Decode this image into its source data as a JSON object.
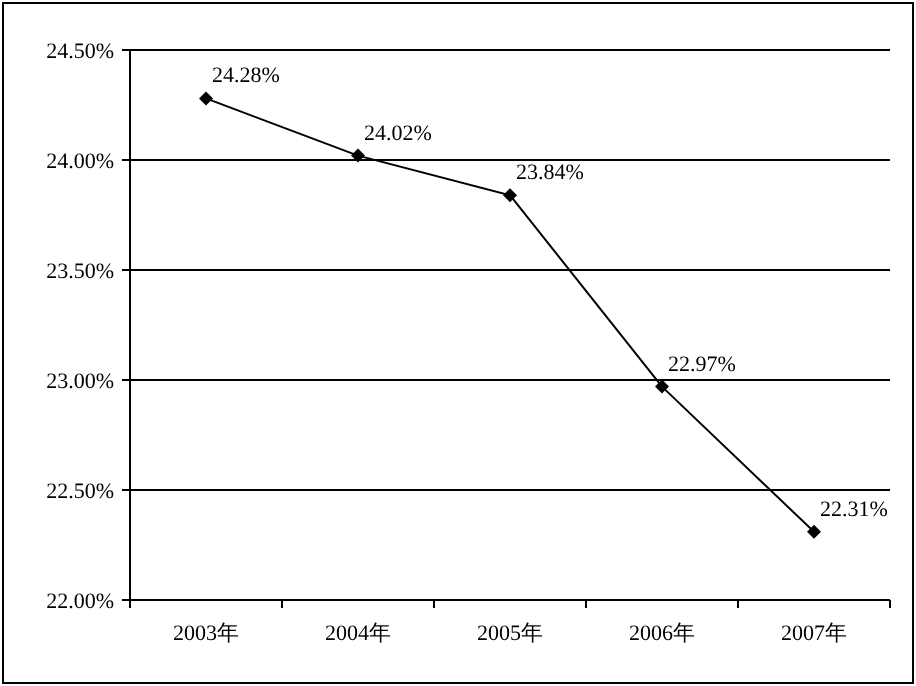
{
  "chart_data": {
    "type": "line",
    "categories": [
      "2003年",
      "2004年",
      "2005年",
      "2006年",
      "2007年"
    ],
    "series": [
      {
        "color": "#000000",
        "values": [
          24.28,
          24.02,
          23.84,
          22.97,
          22.31
        ],
        "value_labels": [
          "24.28%",
          "24.02%",
          "23.84%",
          "22.97%",
          "22.31%"
        ]
      }
    ],
    "ylim": [
      22,
      24.5
    ],
    "yticks": [
      {
        "value": 22,
        "label": "22.00%"
      },
      {
        "value": 22.5,
        "label": "22.50%"
      },
      {
        "value": 23,
        "label": "23.00%"
      },
      {
        "value": 23.5,
        "label": "23.50%"
      },
      {
        "value": 24,
        "label": "24.00%"
      },
      {
        "value": 24.5,
        "label": "24.50%"
      }
    ],
    "grid": "y",
    "marker": "diamond",
    "line_style": "solid"
  }
}
